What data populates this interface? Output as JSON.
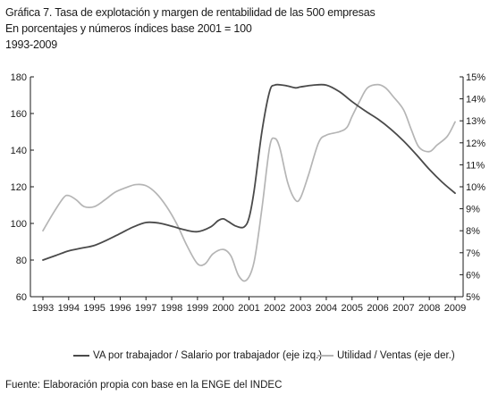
{
  "header": {
    "title": "Gráfica 7. Tasa de explotación y margen de rentabilidad de las 500 empresas",
    "subtitle": "En porcentajes y números índices base 2001 = 100",
    "period": "1993-2009"
  },
  "source": "Fuente: Elaboración propia con base en la ENGE del INDEC",
  "colors": {
    "series_left": "#4a4a4a",
    "series_right": "#b5b5b5",
    "axis": "#1a1a1a"
  },
  "chart_data": {
    "type": "line",
    "x_ticks": [
      "1993",
      "1994",
      "1995",
      "1996",
      "1997",
      "1998",
      "1999",
      "2000",
      "2001",
      "2002",
      "2003",
      "2004",
      "2005",
      "2006",
      "2007",
      "2008",
      "2009"
    ],
    "y_left": {
      "ticks": [
        "60",
        "80",
        "100",
        "120",
        "140",
        "160",
        "180"
      ],
      "ylim": [
        60,
        180
      ]
    },
    "y_right": {
      "ticks": [
        "5%",
        "6%",
        "7%",
        "8%",
        "9%",
        "10%",
        "11%",
        "12%",
        "13%",
        "14%",
        "15%"
      ],
      "ylim": [
        5,
        15
      ]
    },
    "grid": false,
    "legend_position": "bottom",
    "series": [
      {
        "name": "VA por trabajador / Salario por trabajador (eje izq.)",
        "axis": "left",
        "points": [
          [
            1993.0,
            80
          ],
          [
            1993.5,
            82.5
          ],
          [
            1994.0,
            85
          ],
          [
            1994.5,
            86.5
          ],
          [
            1995.0,
            88
          ],
          [
            1995.5,
            91
          ],
          [
            1996.0,
            94.5
          ],
          [
            1996.5,
            98
          ],
          [
            1997.0,
            100.5
          ],
          [
            1997.5,
            100.2
          ],
          [
            1998.0,
            98.5
          ],
          [
            1998.5,
            96.5
          ],
          [
            1999.0,
            95.5
          ],
          [
            1999.5,
            98
          ],
          [
            1999.8,
            101.5
          ],
          [
            2000.0,
            102.5
          ],
          [
            2000.2,
            101
          ],
          [
            2000.5,
            98.5
          ],
          [
            2000.8,
            98
          ],
          [
            2001.0,
            103
          ],
          [
            2001.2,
            118
          ],
          [
            2001.5,
            150
          ],
          [
            2001.8,
            172
          ],
          [
            2002.0,
            175.5
          ],
          [
            2002.3,
            175.5
          ],
          [
            2002.5,
            175
          ],
          [
            2002.8,
            174
          ],
          [
            2003.0,
            174.5
          ],
          [
            2003.5,
            175.5
          ],
          [
            2004.0,
            175.5
          ],
          [
            2004.5,
            172
          ],
          [
            2005.0,
            166.5
          ],
          [
            2005.5,
            161.5
          ],
          [
            2006.0,
            157
          ],
          [
            2006.5,
            151.5
          ],
          [
            2007.0,
            145
          ],
          [
            2007.5,
            137.5
          ],
          [
            2008.0,
            129.5
          ],
          [
            2008.5,
            122.5
          ],
          [
            2009.0,
            116.5
          ]
        ]
      },
      {
        "name": "Utilidad / Ventas (eje der.)",
        "axis": "right",
        "points": [
          [
            1993.0,
            8.0
          ],
          [
            1993.4,
            8.8
          ],
          [
            1993.8,
            9.5
          ],
          [
            1994.0,
            9.6
          ],
          [
            1994.3,
            9.4
          ],
          [
            1994.6,
            9.1
          ],
          [
            1995.0,
            9.1
          ],
          [
            1995.4,
            9.4
          ],
          [
            1995.8,
            9.75
          ],
          [
            1996.2,
            9.95
          ],
          [
            1996.6,
            10.1
          ],
          [
            1997.0,
            10.05
          ],
          [
            1997.4,
            9.7
          ],
          [
            1997.8,
            9.1
          ],
          [
            1998.2,
            8.3
          ],
          [
            1998.6,
            7.3
          ],
          [
            1999.0,
            6.5
          ],
          [
            1999.3,
            6.5
          ],
          [
            1999.6,
            6.95
          ],
          [
            2000.0,
            7.15
          ],
          [
            2000.3,
            6.85
          ],
          [
            2000.6,
            5.95
          ],
          [
            2000.9,
            5.75
          ],
          [
            2001.2,
            6.6
          ],
          [
            2001.5,
            9.0
          ],
          [
            2001.8,
            11.8
          ],
          [
            2002.0,
            12.2
          ],
          [
            2002.2,
            11.75
          ],
          [
            2002.5,
            10.2
          ],
          [
            2002.8,
            9.4
          ],
          [
            2003.0,
            9.5
          ],
          [
            2003.3,
            10.5
          ],
          [
            2003.7,
            12.0
          ],
          [
            2004.0,
            12.35
          ],
          [
            2004.5,
            12.5
          ],
          [
            2004.8,
            12.7
          ],
          [
            2005.0,
            13.2
          ],
          [
            2005.3,
            13.9
          ],
          [
            2005.6,
            14.5
          ],
          [
            2006.0,
            14.65
          ],
          [
            2006.3,
            14.5
          ],
          [
            2006.6,
            14.1
          ],
          [
            2007.0,
            13.5
          ],
          [
            2007.3,
            12.6
          ],
          [
            2007.6,
            11.8
          ],
          [
            2008.0,
            11.6
          ],
          [
            2008.3,
            11.9
          ],
          [
            2008.7,
            12.3
          ],
          [
            2009.0,
            12.95
          ]
        ]
      }
    ]
  }
}
